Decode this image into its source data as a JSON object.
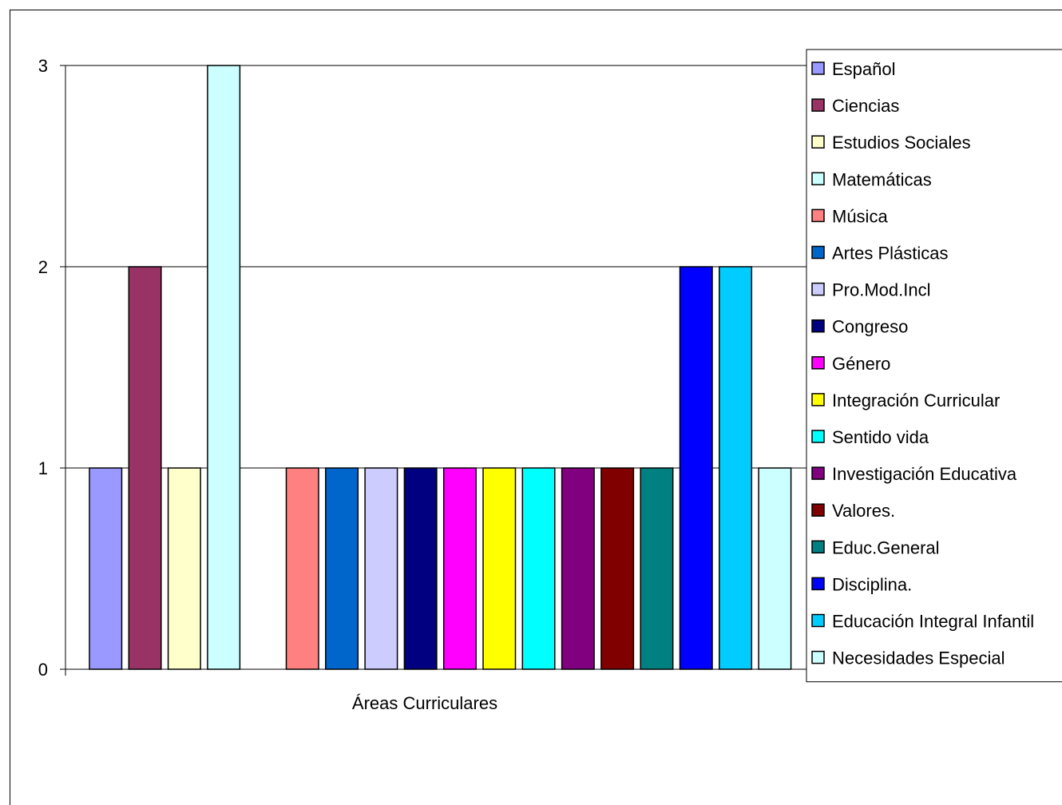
{
  "chart_data": {
    "type": "bar",
    "categories": [
      "Áreas Curriculares"
    ],
    "ylim": [
      0,
      3
    ],
    "yticks": [
      0,
      1,
      2,
      3
    ],
    "grid": true,
    "legend_position": "right",
    "series": [
      {
        "name": "Español",
        "values": [
          1
        ],
        "color": "#9999FF"
      },
      {
        "name": "Ciencias",
        "values": [
          2
        ],
        "color": "#993366"
      },
      {
        "name": "Estudios Sociales",
        "values": [
          1
        ],
        "color": "#FFFFCC"
      },
      {
        "name": "Matemáticas",
        "values": [
          3
        ],
        "color": "#CCFFFF"
      },
      {
        "name": "Música",
        "values": [
          1
        ],
        "color": "#FF8080"
      },
      {
        "name": "Artes Plásticas",
        "values": [
          1
        ],
        "color": "#0066CC"
      },
      {
        "name": "Pro.Mod.Incl",
        "values": [
          1
        ],
        "color": "#CCCCFF"
      },
      {
        "name": "Congreso",
        "values": [
          1
        ],
        "color": "#000080"
      },
      {
        "name": "Género",
        "values": [
          1
        ],
        "color": "#FF00FF"
      },
      {
        "name": "Integración Curricular",
        "values": [
          1
        ],
        "color": "#FFFF00"
      },
      {
        "name": "Sentido vida",
        "values": [
          1
        ],
        "color": "#00FFFF"
      },
      {
        "name": "Investigación Educativa",
        "values": [
          1
        ],
        "color": "#800080"
      },
      {
        "name": "Valores.",
        "values": [
          1
        ],
        "color": "#800000"
      },
      {
        "name": "Educ.General",
        "values": [
          1
        ],
        "color": "#008080"
      },
      {
        "name": "Disciplina.",
        "values": [
          2
        ],
        "color": "#0000FF"
      },
      {
        "name": "Educación Integral Infantil",
        "values": [
          2
        ],
        "color": "#00CCFF"
      },
      {
        "name": "Necesidades Especial",
        "values": [
          1
        ],
        "color": "#CCFFFF"
      }
    ]
  }
}
